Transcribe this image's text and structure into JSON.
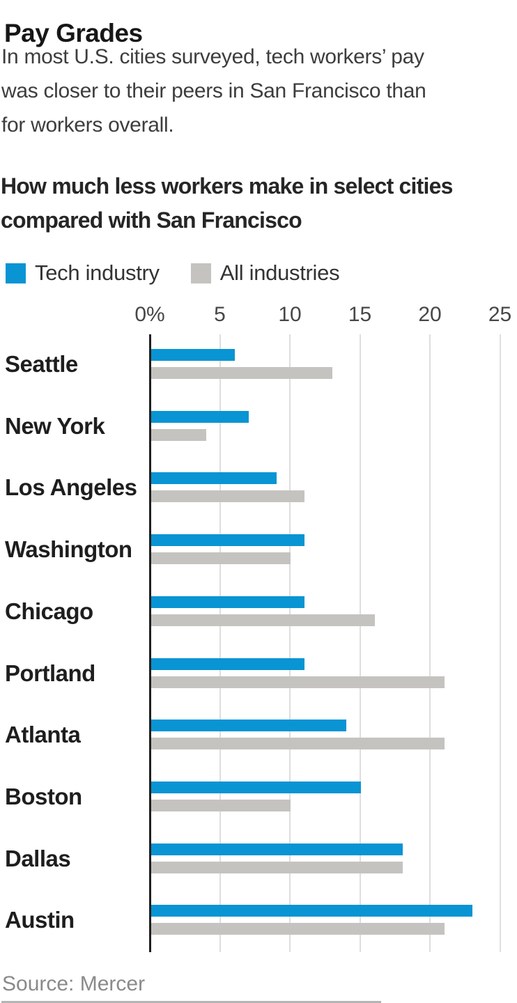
{
  "header": {
    "title": "Pay Grades",
    "subtitle_lines": [
      "In most U.S. cities surveyed, tech workers’ pay",
      "was closer to their peers in San Francisco than",
      "for workers overall."
    ]
  },
  "chart": {
    "heading_lines": [
      "How much less workers make in select cities",
      "compared with San Francisco"
    ]
  },
  "chart_data": {
    "type": "bar",
    "orientation": "horizontal",
    "title": "How much less workers make in select cities compared with San Francisco",
    "categories": [
      "Seattle",
      "New York",
      "Los Angeles",
      "Washington",
      "Chicago",
      "Portland",
      "Atlanta",
      "Boston",
      "Dallas",
      "Austin"
    ],
    "series": [
      {
        "name": "Tech industry",
        "color": "#0994d3",
        "values": [
          6,
          7,
          9,
          11,
          11,
          11,
          14,
          15,
          18,
          23
        ]
      },
      {
        "name": "All industries",
        "color": "#c5c3c0",
        "values": [
          13,
          4,
          11,
          10,
          16,
          21,
          21,
          10,
          18,
          21
        ]
      }
    ],
    "x_ticks": {
      "labels": [
        "0%",
        "5",
        "10",
        "15",
        "20",
        "25"
      ],
      "values": [
        0,
        5,
        10,
        15,
        20,
        25
      ]
    },
    "xlim": [
      0,
      25
    ],
    "unit": "percent less than San Francisco",
    "grid": true,
    "legend_position": "top",
    "colors": {
      "axis": "#1f1f1f",
      "gridline": "#dedede"
    }
  },
  "source": "Source: Mercer"
}
